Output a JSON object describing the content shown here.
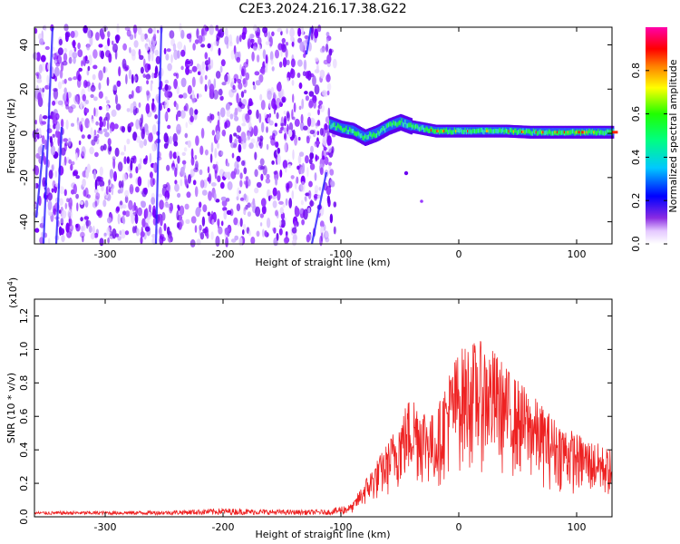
{
  "title": "C2E3.2024.216.17.38.G22",
  "chart_data": [
    {
      "type": "heatmap",
      "xlabel": "Height of straight line (km)",
      "ylabel": "Frequency (Hz)",
      "xlim": [
        -360,
        130
      ],
      "ylim": [
        -50,
        48
      ],
      "xticks": [
        -300,
        -200,
        -100,
        0,
        100
      ],
      "yticks": [
        -40,
        -20,
        0,
        20,
        40
      ],
      "colorbar": {
        "label": "Normalized spectral amplitude",
        "range": [
          0,
          1
        ],
        "ticks": [
          "0.0",
          "0.2",
          "0.4",
          "0.6",
          "0.8"
        ]
      },
      "noise_region_km": [
        -360,
        -105
      ],
      "signal_trace": {
        "x": [
          -110,
          -100,
          -90,
          -80,
          -70,
          -60,
          -50,
          -40,
          -30,
          -20,
          -10,
          0,
          20,
          40,
          60,
          80,
          100,
          130
        ],
        "frequency_hz": [
          4,
          2,
          1,
          -2,
          0,
          3,
          5,
          3,
          2,
          1,
          1,
          1,
          1,
          1,
          0.5,
          0.5,
          0.5,
          0.5
        ]
      }
    },
    {
      "type": "line",
      "xlabel": "Height of straight line (km)",
      "ylabel": "SNR (10 * v/v)",
      "yscale_label": "(x10",
      "yscale_exp": "4",
      "xlim": [
        -360,
        130
      ],
      "ylim": [
        0,
        1.3
      ],
      "xticks": [
        -300,
        -200,
        -100,
        0,
        100
      ],
      "yticks": [
        "0.0",
        "0.2",
        "0.4",
        "0.6",
        "0.8",
        "1.0",
        "1.2"
      ],
      "color": "#ee2222",
      "envelope": {
        "x": [
          -360,
          -250,
          -200,
          -150,
          -110,
          -90,
          -80,
          -60,
          -40,
          -20,
          -10,
          0,
          10,
          20,
          30,
          40,
          60,
          80,
          100,
          115,
          130
        ],
        "y": [
          0.02,
          0.025,
          0.04,
          0.03,
          0.03,
          0.08,
          0.22,
          0.45,
          0.75,
          0.6,
          0.85,
          1.0,
          1.05,
          1.05,
          1.0,
          0.9,
          0.75,
          0.6,
          0.5,
          0.45,
          0.4
        ]
      }
    }
  ]
}
